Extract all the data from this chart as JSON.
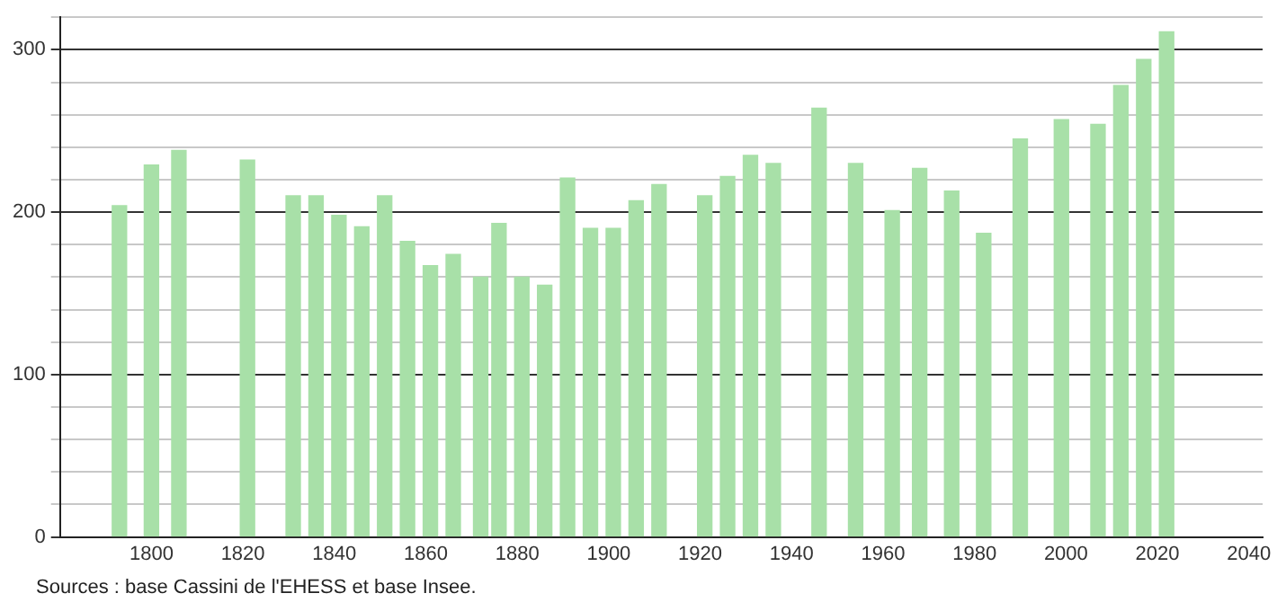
{
  "chart_data": {
    "type": "bar",
    "x": [
      1793,
      1800,
      1806,
      1821,
      1831,
      1836,
      1841,
      1846,
      1851,
      1856,
      1861,
      1866,
      1872,
      1876,
      1881,
      1886,
      1891,
      1896,
      1901,
      1906,
      1911,
      1921,
      1926,
      1931,
      1936,
      1946,
      1954,
      1962,
      1968,
      1975,
      1982,
      1990,
      1999,
      2007,
      2012,
      2017,
      2022
    ],
    "values": [
      204,
      229,
      238,
      232,
      210,
      210,
      198,
      191,
      210,
      182,
      167,
      174,
      160,
      193,
      160,
      155,
      221,
      190,
      190,
      207,
      217,
      210,
      222,
      235,
      230,
      264,
      230,
      201,
      227,
      213,
      187,
      245,
      257,
      254,
      278,
      294,
      311
    ],
    "color": "#a8e0a8",
    "xlim": [
      1780,
      2043
    ],
    "xticks": [
      1800,
      1820,
      1840,
      1860,
      1880,
      1900,
      1920,
      1940,
      1960,
      1980,
      2000,
      2020,
      2040
    ],
    "ylim": [
      0,
      320
    ],
    "yticks": [
      0,
      {
        "value": 20,
        "label": null
      },
      {
        "value": 40,
        "label": null
      },
      {
        "value": 60,
        "label": null
      },
      {
        "value": 80,
        "label": null
      },
      100,
      {
        "value": 120,
        "label": null
      },
      {
        "value": 140,
        "label": null
      },
      {
        "value": 160,
        "label": null
      },
      {
        "value": 180,
        "label": null
      },
      200,
      {
        "value": 220,
        "label": null
      },
      {
        "value": 240,
        "label": null
      },
      {
        "value": 260,
        "label": null
      },
      {
        "value": 280,
        "label": null
      },
      300,
      {
        "value": 320,
        "label": null
      }
    ],
    "grid": "y",
    "legend": false,
    "annotations": [
      "Sources : base Cassini de l'EHESS et base Insee."
    ]
  }
}
